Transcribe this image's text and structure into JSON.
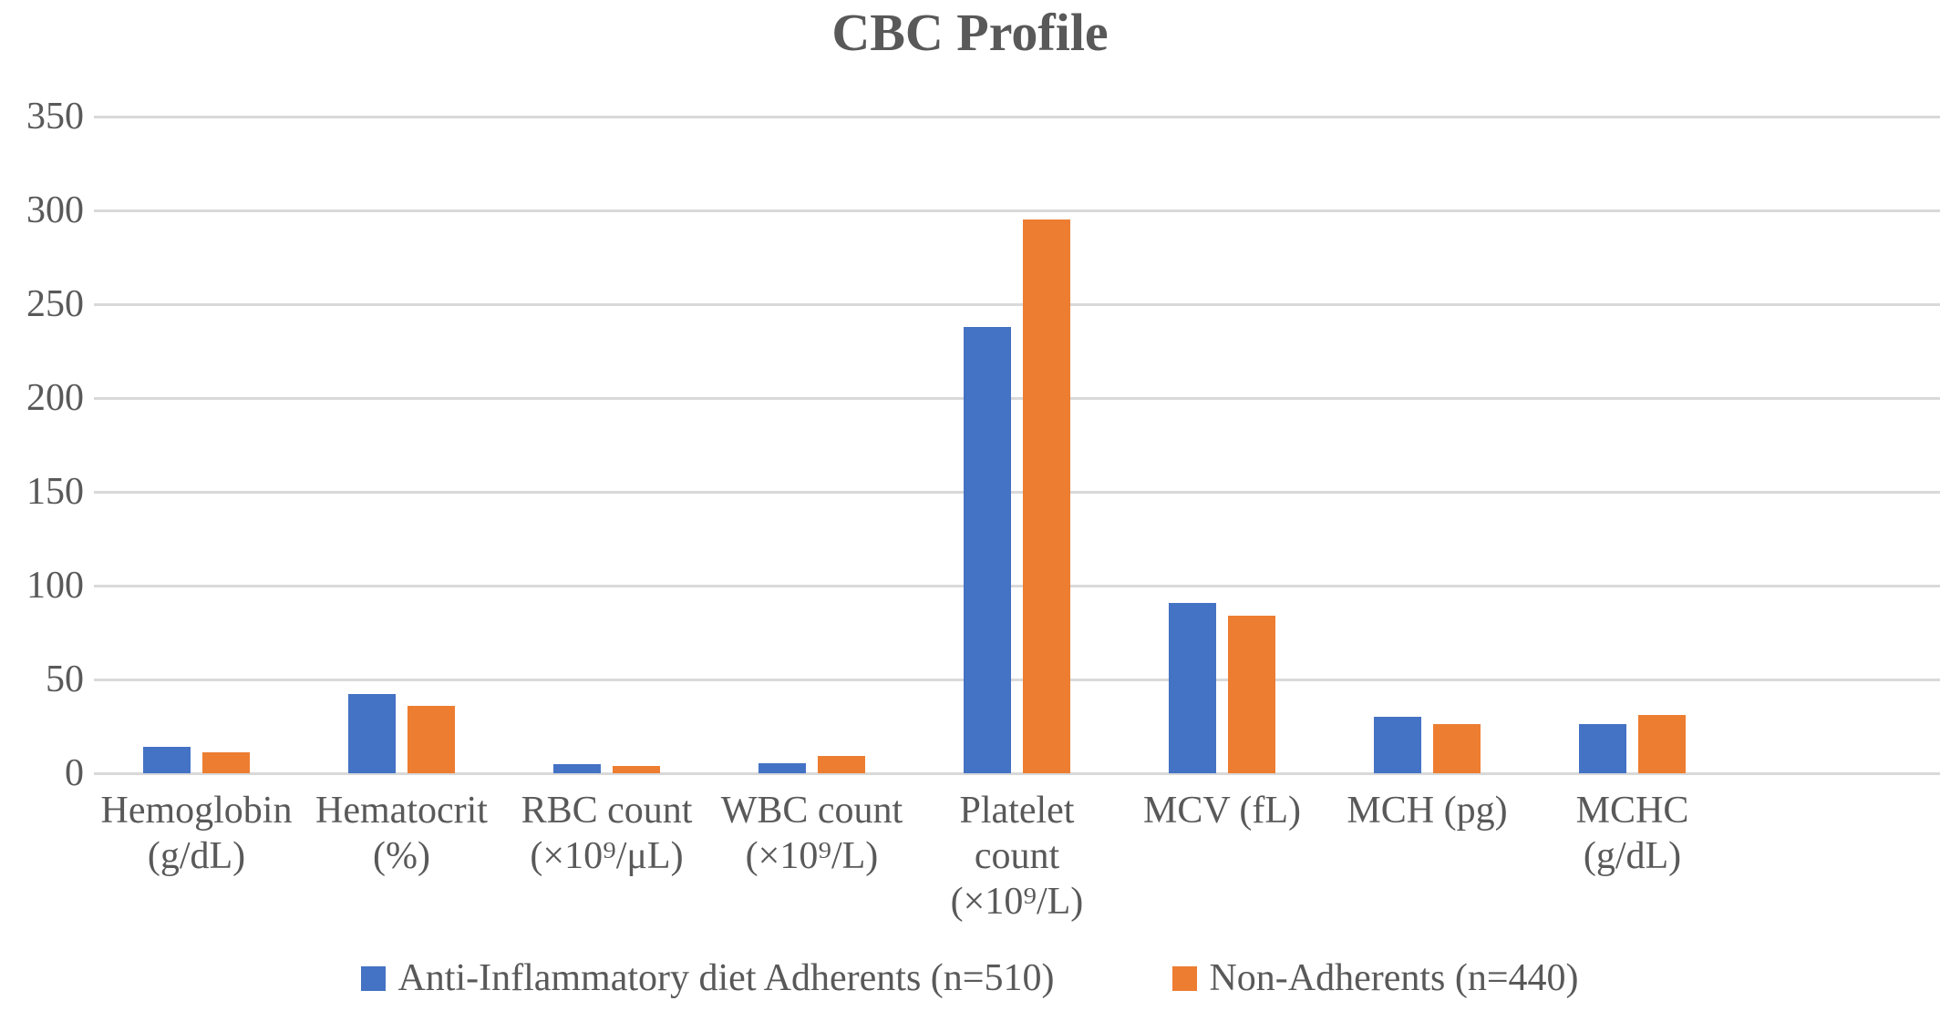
{
  "title": "CBC Profile",
  "colors": {
    "adherents_blue": "#4472C4",
    "non_adherents_orange": "#ED7D31",
    "gridline": "#D9D9D9",
    "text": "#595959",
    "background": "#FFFFFF"
  },
  "chart_data": {
    "type": "bar",
    "title": "CBC Profile",
    "xlabel": "",
    "ylabel": "",
    "ylim": [
      0,
      350
    ],
    "ytick_step": 50,
    "yticks": [
      0,
      50,
      100,
      150,
      200,
      250,
      300,
      350
    ],
    "grid": true,
    "legend_position": "bottom",
    "categories": [
      "Hemoglobin (g/dL)",
      "Hematocrit (%)",
      "RBC count (×10⁹/μL)",
      "WBC count (×10⁹/L)",
      "Platelet count (×10⁹/L)",
      "MCV (fL)",
      "MCH (pg)",
      "MCHC (g/dL)"
    ],
    "category_keys": [
      "hemoglobin",
      "hematocrit",
      "rbc-count",
      "wbc-count",
      "platelet-count",
      "mcv",
      "mch",
      "mchc"
    ],
    "category_label_lines": [
      [
        "Hemoglobin",
        "(g/dL)"
      ],
      [
        "Hematocrit",
        "(%)"
      ],
      [
        "RBC count",
        "(×10⁹/μL)"
      ],
      [
        "WBC count",
        "(×10⁹/L)"
      ],
      [
        "Platelet",
        "count",
        "(×10⁹/L)"
      ],
      [
        "MCV (fL)"
      ],
      [
        "MCH (pg)"
      ],
      [
        "MCHC",
        "(g/dL)"
      ]
    ],
    "series": [
      {
        "name": "Anti-Inflammatory diet Adherents (n=510)",
        "key": "adherents",
        "color": "#4472C4",
        "values": [
          14,
          42,
          4.8,
          5.5,
          238,
          91,
          30,
          26
        ]
      },
      {
        "name": "Non-Adherents (n=440)",
        "key": "non-adherents",
        "color": "#ED7D31",
        "values": [
          11,
          36,
          3.9,
          9,
          295,
          84,
          26,
          31
        ]
      }
    ]
  }
}
